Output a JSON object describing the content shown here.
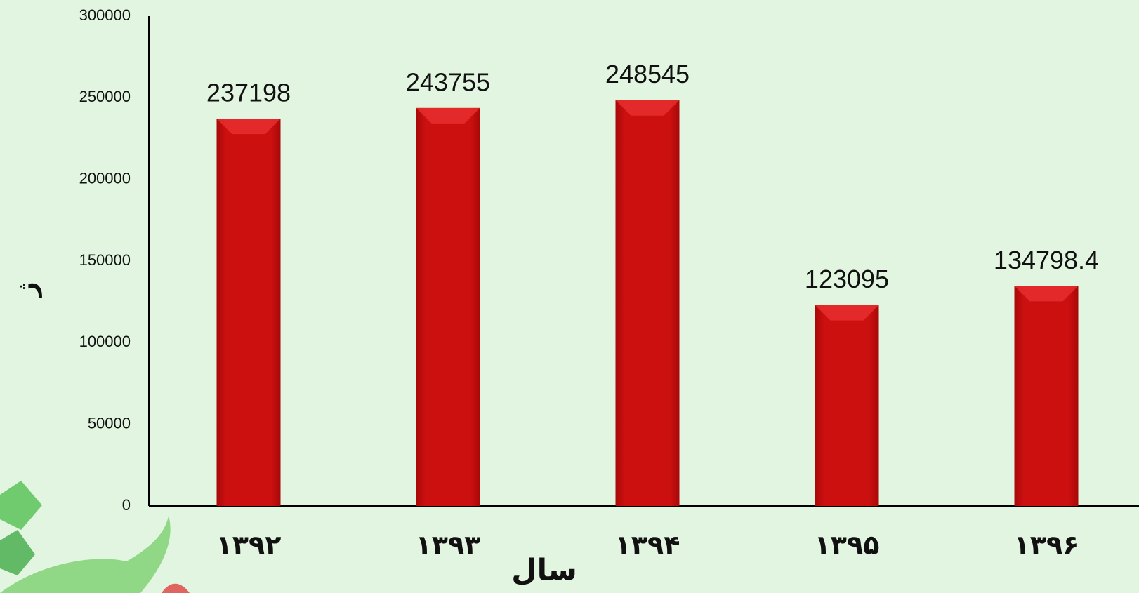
{
  "chart_data": {
    "type": "bar",
    "x_label": "سال",
    "y_label": "ژ",
    "categories": [
      "۱۳۹۲",
      "۱۳۹۳",
      "۱۳۹۴",
      "۱۳۹۵",
      "۱۳۹۶"
    ],
    "values": [
      237198,
      243755,
      248545,
      123095,
      134798.4
    ],
    "color": "#c40a0a",
    "ylim": [
      0,
      300000
    ],
    "yticks": [
      0,
      50000,
      100000,
      150000,
      200000,
      250000,
      300000
    ],
    "grid": false
  }
}
